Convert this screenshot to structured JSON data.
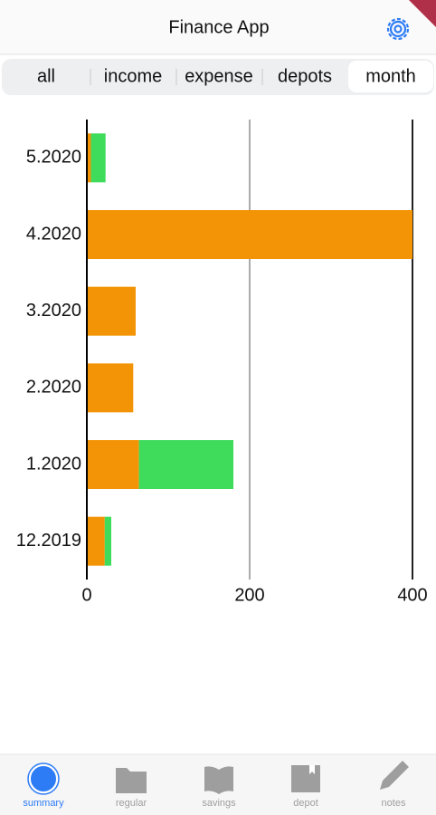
{
  "header": {
    "title": "Finance App"
  },
  "tabs": [
    "all",
    "income",
    "expense",
    "depots",
    "month"
  ],
  "chart_data": {
    "type": "hbar-stacked",
    "categories": [
      "5.2020",
      "4.2020",
      "3.2020",
      "2.2020",
      "1.2020",
      "12.2019"
    ],
    "series": [
      {
        "color": "#f39406",
        "values": [
          5,
          400,
          60,
          57,
          64,
          22
        ]
      },
      {
        "color": "#3fdc5c",
        "values": [
          18,
          0,
          0,
          0,
          116,
          8
        ]
      }
    ],
    "xlim": [
      0,
      400
    ],
    "xticks": [
      0,
      200,
      400
    ],
    "grid": true
  },
  "nav": [
    "summary",
    "regular",
    "savings",
    "depot",
    "notes"
  ]
}
